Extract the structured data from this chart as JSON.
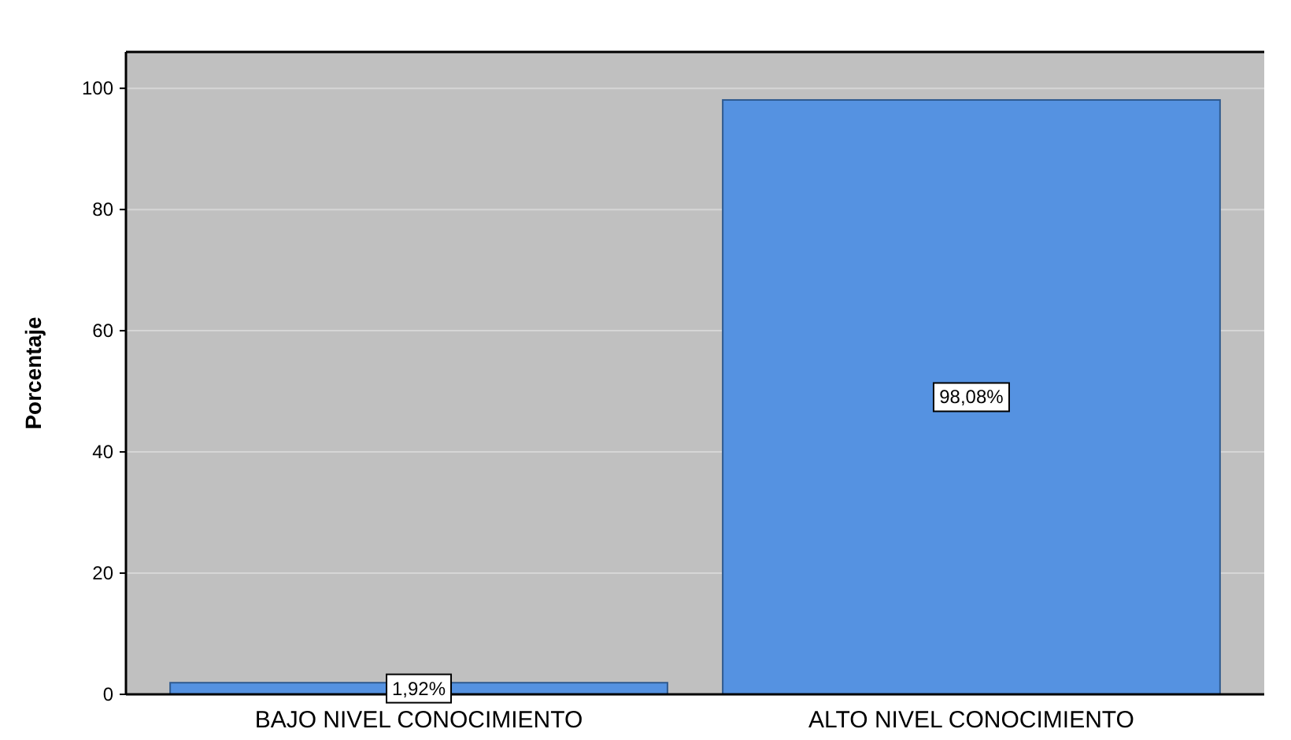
{
  "chart_data": {
    "type": "bar",
    "ylabel": "Porcentaje",
    "categories": [
      "BAJO NIVEL CONOCIMIENTO",
      "ALTO NIVEL CONOCIMIENTO"
    ],
    "values": [
      1.92,
      98.08
    ],
    "color": "#5592e1",
    "value_labels": [
      "1,92%",
      "98,08%"
    ],
    "ylim": [
      0,
      106
    ],
    "yticks": [
      0,
      20,
      40,
      60,
      80,
      100
    ],
    "grid": "y"
  }
}
